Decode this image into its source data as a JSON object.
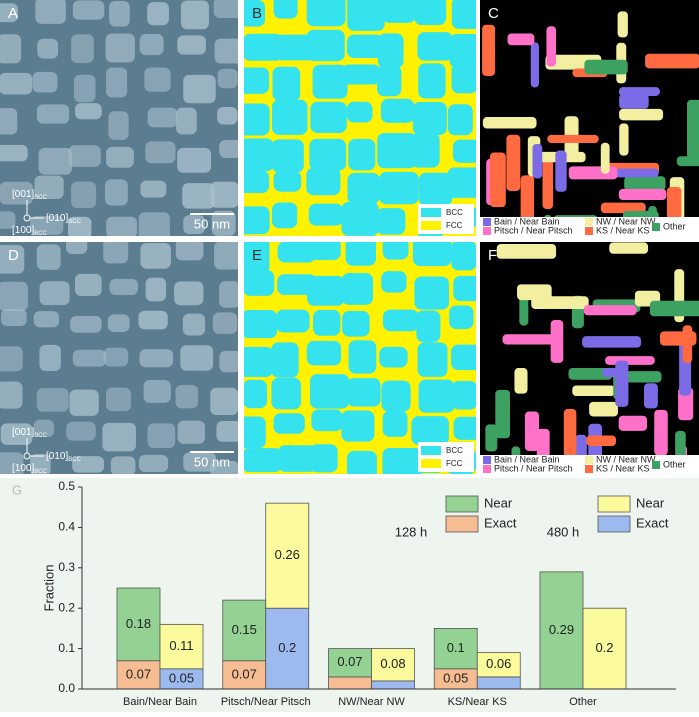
{
  "panels": [
    {
      "label": "A",
      "scale_bar": "50 nm",
      "directions": [
        {
          "text": "[001]",
          "sub": "BCC"
        },
        {
          "text": "[010]",
          "sub": "BCC"
        },
        {
          "text": "[100]",
          "sub": "BCC"
        }
      ]
    },
    {
      "label": "B",
      "legend": [
        {
          "name": "BCC",
          "color": "#35e3ef"
        },
        {
          "name": "FCC",
          "color": "#fff200"
        }
      ]
    },
    {
      "label": "C",
      "legend": [
        {
          "name": "Bain / Near Bain",
          "color": "#7c6be6"
        },
        {
          "name": "Pitsch / Near Pitsch",
          "color": "#ff70c8"
        },
        {
          "name": "NW / Near NW",
          "color": "#f3efa0"
        },
        {
          "name": "KS / Near KS",
          "color": "#ff6a40"
        },
        {
          "name": "Other",
          "color": "#3da162"
        }
      ]
    },
    {
      "label": "D",
      "scale_bar": "50 nm",
      "directions": [
        {
          "text": "[001]",
          "sub": "BCC"
        },
        {
          "text": "[010]",
          "sub": "BCC"
        },
        {
          "text": "[100]",
          "sub": "BCC"
        }
      ]
    },
    {
      "label": "E",
      "legend": [
        {
          "name": "BCC",
          "color": "#35e3ef"
        },
        {
          "name": "FCC",
          "color": "#fff200"
        }
      ]
    },
    {
      "label": "F",
      "legend": [
        {
          "name": "Bain / Near Bain",
          "color": "#7c6be6"
        },
        {
          "name": "Pitsch / Near Pitsch",
          "color": "#ff70c8"
        },
        {
          "name": "NW / Near NW",
          "color": "#f3efa0"
        },
        {
          "name": "KS / Near KS",
          "color": "#ff6a40"
        },
        {
          "name": "Other",
          "color": "#3da162"
        }
      ]
    }
  ],
  "chart_data": {
    "type": "bar",
    "label": "G",
    "ylabel": "Fraction",
    "stacked": true,
    "categories": [
      "Bain/Near Bain",
      "Pitsch/Near Pitsch",
      "NW/Near NW",
      "KS/Near KS",
      "Other"
    ],
    "ylim": [
      0,
      0.5
    ],
    "yticks": [
      {
        "value": 0,
        "label": "0.0"
      },
      0.1,
      0.2,
      0.3,
      0.4,
      0.5
    ],
    "groups": [
      {
        "name": "128 h",
        "series": [
          {
            "name": "Exact",
            "color": "#f6bd92",
            "values": [
              0.07,
              0.07,
              0.03,
              0.05,
              null
            ],
            "value_labels": [
              "0.07",
              "0.07",
              null,
              "0.05",
              null
            ]
          },
          {
            "name": "Near",
            "color": "#94d294",
            "values": [
              0.18,
              0.15,
              0.07,
              0.1,
              0.29
            ],
            "value_labels": [
              "0.18",
              "0.15",
              "0.07",
              "0.1",
              "0.29"
            ]
          }
        ]
      },
      {
        "name": "480 h",
        "series": [
          {
            "name": "Exact",
            "color": "#9dbaee",
            "values": [
              0.05,
              0.2,
              0.02,
              0.03,
              null
            ],
            "value_labels": [
              "0.05",
              "0.2",
              null,
              null,
              null
            ]
          },
          {
            "name": "Near",
            "color": "#fbfa9c",
            "values": [
              0.11,
              0.26,
              0.08,
              0.06,
              0.2
            ],
            "value_labels": [
              "0.11",
              "0.26",
              "0.08",
              "0.06",
              "0.2"
            ]
          }
        ]
      }
    ]
  }
}
